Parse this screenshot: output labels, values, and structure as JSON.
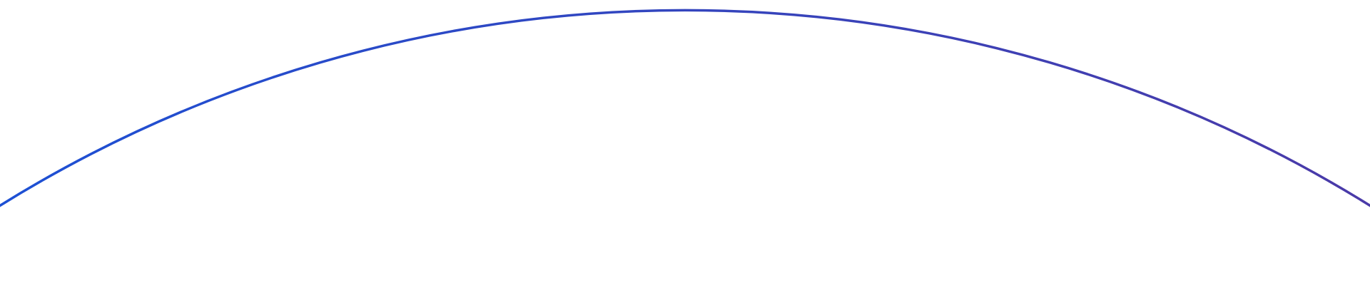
{
  "decoration": {
    "shape": "arc",
    "gradient_start": "#1d50d4",
    "gradient_end": "#4a3aa8",
    "background": "#ffffff"
  }
}
